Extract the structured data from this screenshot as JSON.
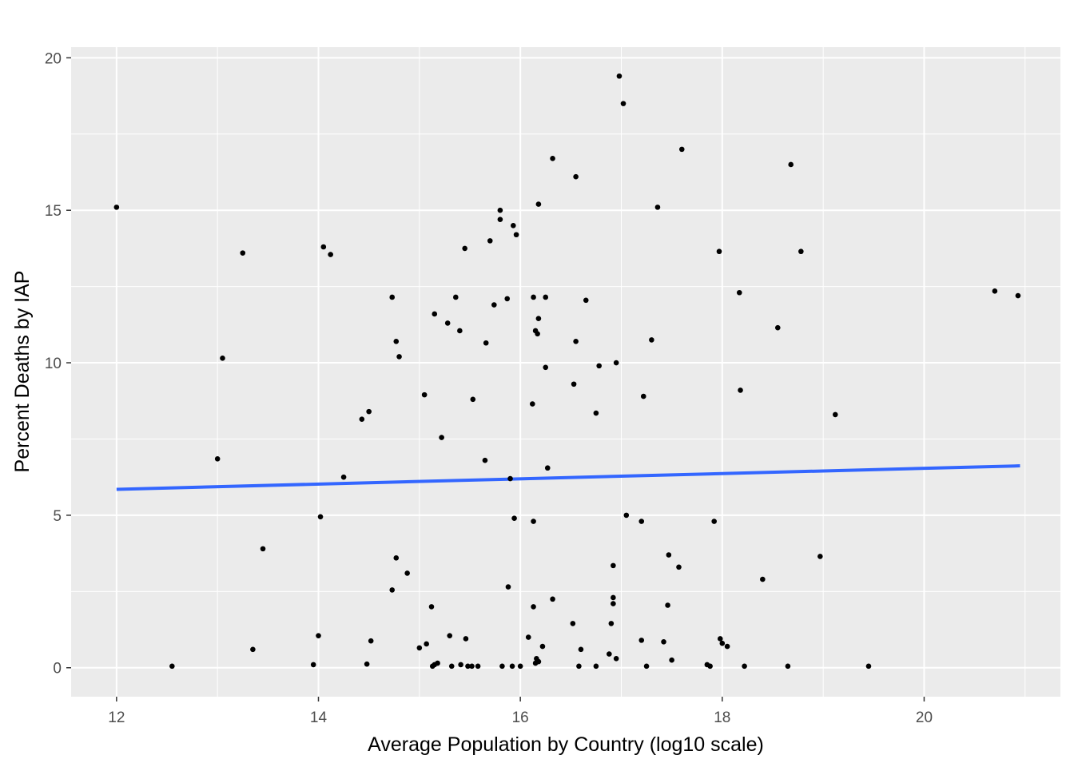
{
  "chart_data": {
    "type": "scatter",
    "title": "",
    "xlabel": "Average Population by Country (log10 scale)",
    "ylabel": "Percent Deaths by IAP",
    "xlim": [
      11.55,
      21.35
    ],
    "ylim": [
      -0.95,
      20.35
    ],
    "x_ticks": [
      "12",
      "14",
      "16",
      "18",
      "20"
    ],
    "y_ticks": [
      "0",
      "5",
      "10",
      "15",
      "20"
    ],
    "grid": true,
    "panel_background": "#ebebeb",
    "point_color": "#000000",
    "fit_line_color": "#3366ff",
    "fit_line": {
      "x": [
        12.0,
        20.95
      ],
      "y": [
        5.85,
        6.62
      ]
    },
    "points": [
      [
        12.0,
        15.1
      ],
      [
        12.55,
        0.05
      ],
      [
        13.0,
        6.85
      ],
      [
        13.05,
        10.15
      ],
      [
        13.25,
        13.6
      ],
      [
        13.35,
        0.6
      ],
      [
        13.45,
        3.9
      ],
      [
        13.95,
        0.1
      ],
      [
        14.0,
        1.05
      ],
      [
        14.02,
        4.95
      ],
      [
        14.05,
        13.8
      ],
      [
        14.12,
        13.55
      ],
      [
        14.25,
        6.25
      ],
      [
        14.43,
        8.15
      ],
      [
        14.48,
        0.12
      ],
      [
        14.5,
        8.4
      ],
      [
        14.52,
        0.88
      ],
      [
        14.73,
        12.15
      ],
      [
        14.73,
        2.55
      ],
      [
        14.77,
        10.7
      ],
      [
        14.77,
        3.6
      ],
      [
        14.8,
        10.2
      ],
      [
        14.88,
        3.1
      ],
      [
        15.0,
        0.65
      ],
      [
        15.05,
        8.95
      ],
      [
        15.07,
        0.78
      ],
      [
        15.12,
        2.0
      ],
      [
        15.13,
        0.05
      ],
      [
        15.15,
        11.6
      ],
      [
        15.15,
        0.1
      ],
      [
        15.18,
        0.15
      ],
      [
        15.22,
        7.55
      ],
      [
        15.28,
        11.3
      ],
      [
        15.3,
        1.05
      ],
      [
        15.32,
        0.05
      ],
      [
        15.36,
        12.15
      ],
      [
        15.4,
        11.05
      ],
      [
        15.41,
        0.1
      ],
      [
        15.45,
        13.75
      ],
      [
        15.46,
        0.95
      ],
      [
        15.48,
        0.05
      ],
      [
        15.52,
        0.05
      ],
      [
        15.53,
        8.8
      ],
      [
        15.58,
        0.05
      ],
      [
        15.65,
        6.8
      ],
      [
        15.66,
        10.65
      ],
      [
        15.7,
        14.0
      ],
      [
        15.74,
        11.9
      ],
      [
        15.8,
        15.0
      ],
      [
        15.8,
        14.7
      ],
      [
        15.82,
        0.05
      ],
      [
        15.87,
        12.1
      ],
      [
        15.88,
        2.65
      ],
      [
        15.9,
        6.2
      ],
      [
        15.92,
        0.05
      ],
      [
        15.93,
        14.5
      ],
      [
        15.94,
        4.9
      ],
      [
        15.96,
        14.2
      ],
      [
        16.0,
        0.05
      ],
      [
        16.08,
        1.0
      ],
      [
        16.12,
        8.65
      ],
      [
        16.13,
        12.15
      ],
      [
        16.13,
        4.8
      ],
      [
        16.13,
        2.0
      ],
      [
        16.15,
        11.05
      ],
      [
        16.15,
        0.15
      ],
      [
        16.16,
        0.3
      ],
      [
        16.17,
        10.95
      ],
      [
        16.18,
        0.2
      ],
      [
        16.18,
        11.45
      ],
      [
        16.18,
        15.2
      ],
      [
        16.22,
        0.7
      ],
      [
        16.25,
        9.85
      ],
      [
        16.25,
        12.15
      ],
      [
        16.27,
        6.55
      ],
      [
        16.32,
        16.7
      ],
      [
        16.32,
        2.25
      ],
      [
        16.52,
        1.45
      ],
      [
        16.53,
        9.3
      ],
      [
        16.55,
        16.1
      ],
      [
        16.55,
        10.7
      ],
      [
        16.58,
        0.05
      ],
      [
        16.6,
        0.6
      ],
      [
        16.65,
        12.05
      ],
      [
        16.75,
        8.35
      ],
      [
        16.75,
        0.05
      ],
      [
        16.78,
        9.9
      ],
      [
        16.88,
        0.45
      ],
      [
        16.9,
        1.45
      ],
      [
        16.92,
        3.35
      ],
      [
        16.92,
        2.3
      ],
      [
        16.92,
        2.1
      ],
      [
        16.95,
        0.3
      ],
      [
        16.95,
        10.0
      ],
      [
        16.98,
        19.4
      ],
      [
        17.02,
        18.5
      ],
      [
        17.05,
        5.0
      ],
      [
        17.2,
        4.8
      ],
      [
        17.2,
        0.9
      ],
      [
        17.22,
        8.9
      ],
      [
        17.25,
        0.05
      ],
      [
        17.3,
        10.75
      ],
      [
        17.36,
        15.1
      ],
      [
        17.42,
        0.85
      ],
      [
        17.46,
        2.05
      ],
      [
        17.47,
        3.7
      ],
      [
        17.5,
        0.25
      ],
      [
        17.57,
        3.3
      ],
      [
        17.6,
        17.0
      ],
      [
        17.85,
        0.1
      ],
      [
        17.88,
        0.05
      ],
      [
        17.92,
        4.8
      ],
      [
        17.97,
        13.65
      ],
      [
        17.98,
        0.95
      ],
      [
        18.0,
        0.8
      ],
      [
        18.05,
        0.7
      ],
      [
        18.17,
        12.3
      ],
      [
        18.18,
        9.1
      ],
      [
        18.22,
        0.05
      ],
      [
        18.4,
        2.9
      ],
      [
        18.55,
        11.15
      ],
      [
        18.65,
        0.05
      ],
      [
        18.68,
        16.5
      ],
      [
        18.78,
        13.65
      ],
      [
        18.97,
        3.65
      ],
      [
        19.12,
        8.3
      ],
      [
        19.45,
        0.05
      ],
      [
        20.7,
        12.35
      ],
      [
        20.93,
        12.2
      ]
    ]
  }
}
